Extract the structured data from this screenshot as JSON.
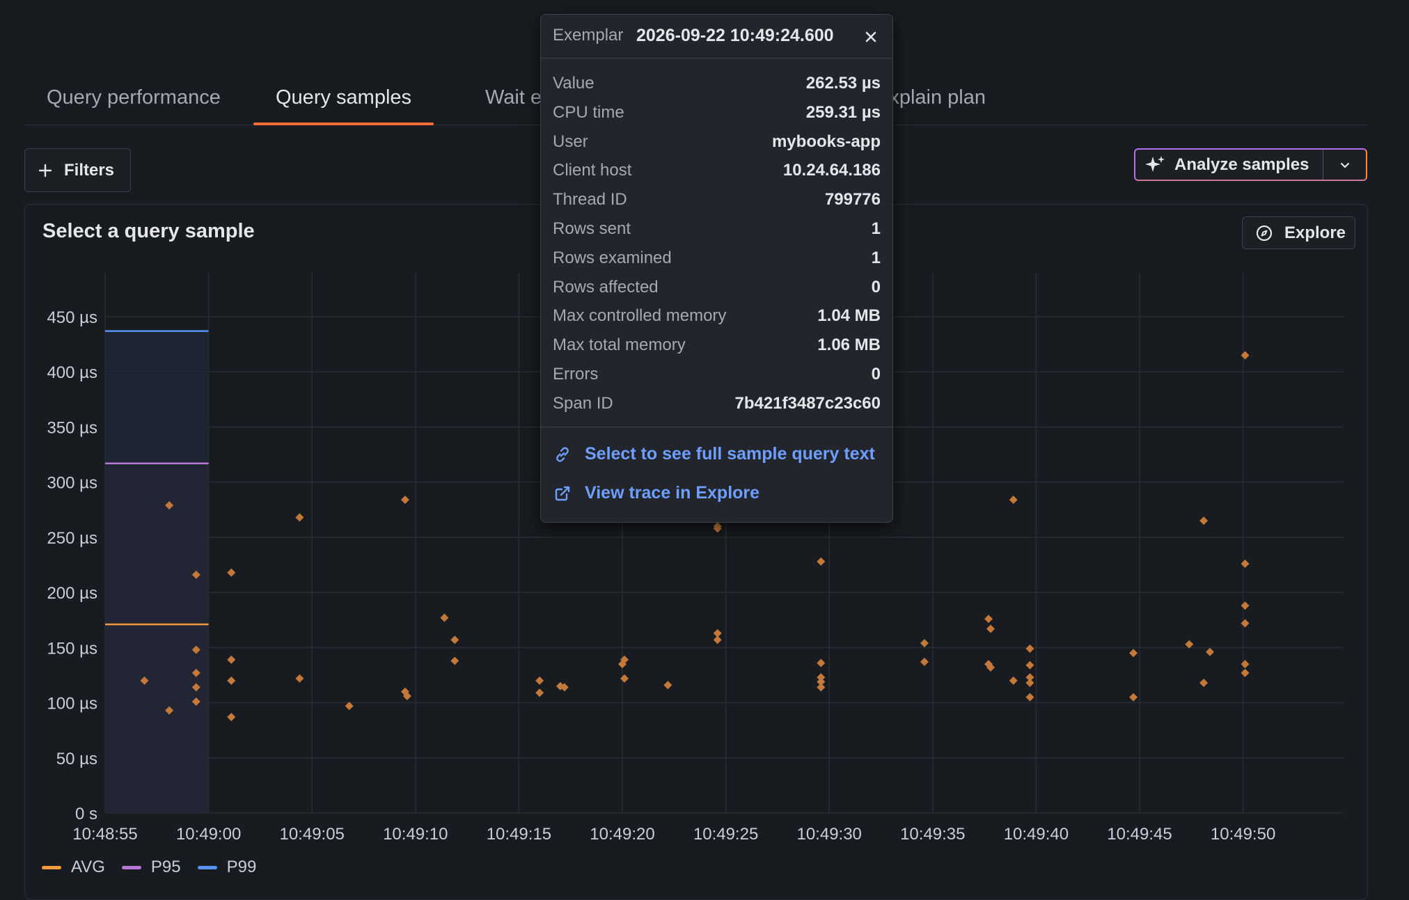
{
  "tabs": [
    {
      "label": "Query performance",
      "active": false
    },
    {
      "label": "Query samples",
      "active": true
    },
    {
      "label": "Wait events",
      "active": false
    },
    {
      "label": "Explain plan",
      "active": false
    }
  ],
  "toolbar": {
    "filters_label": "Filters",
    "filters_icon": "plus-icon",
    "analyze_label": "Analyze samples",
    "analyze_icon": "sparkle-icon",
    "analyze_dropdown_icon": "chevron-down-icon"
  },
  "panel": {
    "title": "Select a query sample",
    "explore_label": "Explore",
    "explore_icon": "compass-icon"
  },
  "tooltip": {
    "header_label": "Exemplar",
    "header_value": "2026-09-22 10:49:24.600",
    "rows": [
      {
        "key": "Value",
        "value": "262.53 µs"
      },
      {
        "key": "CPU time",
        "value": "259.31 µs"
      },
      {
        "key": "User",
        "value": "mybooks-app"
      },
      {
        "key": "Client host",
        "value": "10.24.64.186"
      },
      {
        "key": "Thread ID",
        "value": "799776"
      },
      {
        "key": "Rows sent",
        "value": "1"
      },
      {
        "key": "Rows examined",
        "value": "1"
      },
      {
        "key": "Rows affected",
        "value": "0"
      },
      {
        "key": "Max controlled memory",
        "value": "1.04 MB"
      },
      {
        "key": "Max total memory",
        "value": "1.06 MB"
      },
      {
        "key": "Errors",
        "value": "0"
      },
      {
        "key": "Span ID",
        "value": "7b421f3487c23c60"
      }
    ],
    "links": [
      {
        "label": "Select to see full sample query text",
        "icon": "link-icon"
      },
      {
        "label": "View trace in Explore",
        "icon": "external-link-icon"
      }
    ]
  },
  "colors": {
    "accent_tab": "#f56e36",
    "avg": "#f79a3e",
    "p95": "#b877d9",
    "p99": "#5794f2",
    "point": "#c4793a",
    "link": "#6e9fff"
  },
  "chart_data": {
    "type": "scatter",
    "x_start": "10:48:55",
    "xlim": [
      0,
      58.5
    ],
    "ylim": [
      0,
      450
    ],
    "yticks": [
      0,
      50,
      100,
      150,
      200,
      250,
      300,
      350,
      400,
      450
    ],
    "ytick_labels": [
      "0 s",
      "50 µs",
      "100 µs",
      "150 µs",
      "200 µs",
      "250 µs",
      "300 µs",
      "350 µs",
      "400 µs",
      "450 µs"
    ],
    "xticks": [
      0,
      5,
      10,
      15,
      20,
      25,
      30,
      35,
      40,
      45,
      50,
      55
    ],
    "xtick_labels": [
      "10:48:55",
      "10:49:00",
      "10:49:05",
      "10:49:10",
      "10:49:15",
      "10:49:20",
      "10:49:25",
      "10:49:30",
      "10:49:35",
      "10:49:40",
      "10:49:45",
      "10:49:50"
    ],
    "grid": true,
    "legend_position": "bottom-left",
    "legend": [
      "AVG",
      "P95",
      "P99"
    ],
    "bucket_stats": {
      "x_range": [
        0,
        5
      ],
      "avg": 171,
      "p95": 317,
      "p99": 437
    },
    "series": [
      {
        "name": "Samples",
        "points": [
          [
            1.9,
            120
          ],
          [
            3.1,
            93
          ],
          [
            3.1,
            279
          ],
          [
            4.4,
            216
          ],
          [
            4.4,
            148
          ],
          [
            4.4,
            127
          ],
          [
            4.4,
            114
          ],
          [
            4.4,
            101
          ],
          [
            6.1,
            218
          ],
          [
            6.1,
            139
          ],
          [
            6.1,
            120
          ],
          [
            6.1,
            87
          ],
          [
            9.4,
            122
          ],
          [
            9.4,
            268
          ],
          [
            11.8,
            97
          ],
          [
            14.5,
            284
          ],
          [
            14.5,
            110
          ],
          [
            14.6,
            106
          ],
          [
            16.4,
            177
          ],
          [
            16.9,
            157
          ],
          [
            16.9,
            138
          ],
          [
            21.0,
            120
          ],
          [
            21.0,
            109
          ],
          [
            22.0,
            115
          ],
          [
            22.2,
            114
          ],
          [
            25.0,
            135
          ],
          [
            25.1,
            139
          ],
          [
            25.1,
            122
          ],
          [
            27.2,
            116
          ],
          [
            29.6,
            260
          ],
          [
            29.6,
            258
          ],
          [
            29.6,
            163
          ],
          [
            29.6,
            157
          ],
          [
            34.6,
            228
          ],
          [
            34.6,
            136
          ],
          [
            34.6,
            123
          ],
          [
            34.6,
            119
          ],
          [
            34.6,
            114
          ],
          [
            39.6,
            154
          ],
          [
            39.6,
            137
          ],
          [
            42.7,
            176
          ],
          [
            42.8,
            167
          ],
          [
            42.7,
            135
          ],
          [
            42.8,
            132
          ],
          [
            43.9,
            284
          ],
          [
            43.9,
            120
          ],
          [
            44.7,
            149
          ],
          [
            44.7,
            134
          ],
          [
            44.7,
            123
          ],
          [
            44.7,
            118
          ],
          [
            44.7,
            105
          ],
          [
            49.7,
            145
          ],
          [
            49.7,
            105
          ],
          [
            52.4,
            153
          ],
          [
            53.1,
            265
          ],
          [
            53.1,
            118
          ],
          [
            53.4,
            146
          ],
          [
            55.1,
            415
          ],
          [
            55.1,
            226
          ],
          [
            55.1,
            188
          ],
          [
            55.1,
            172
          ],
          [
            55.1,
            135
          ],
          [
            55.1,
            127
          ]
        ]
      }
    ]
  }
}
